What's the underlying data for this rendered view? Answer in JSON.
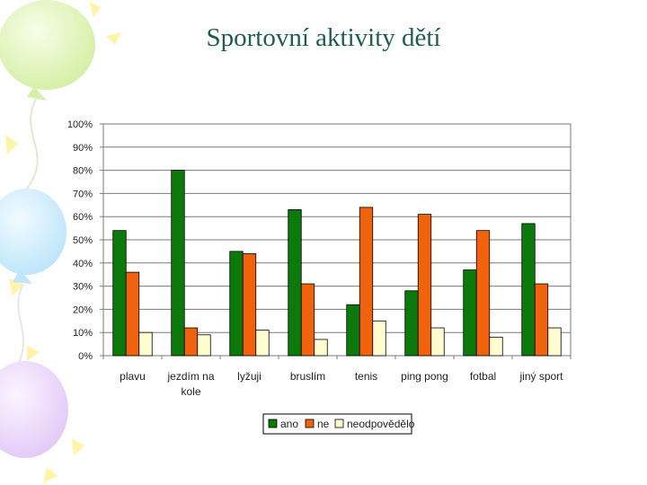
{
  "slide": {
    "title": "Sportovní aktivity dětí"
  },
  "colors": {
    "ano": "#0b7a0b",
    "ne": "#f0620c",
    "neodpovedelo": "#fffccf",
    "grid": "#7a7a7a",
    "title": "#1f5e4c"
  },
  "chart_data": {
    "type": "bar",
    "title": "",
    "xlabel": "",
    "ylabel": "",
    "ylim": [
      0,
      100
    ],
    "yticks": [
      "0%",
      "10%",
      "20%",
      "30%",
      "40%",
      "50%",
      "60%",
      "70%",
      "80%",
      "90%",
      "100%"
    ],
    "categories": [
      [
        "plavu"
      ],
      [
        "jezdím na",
        "kole"
      ],
      [
        "lyžuji"
      ],
      [
        "bruslím"
      ],
      [
        "tenis"
      ],
      [
        "ping pong"
      ],
      [
        "fotbal"
      ],
      [
        "jiný sport"
      ]
    ],
    "series": [
      {
        "name": "ano",
        "values": [
          54,
          80,
          45,
          63,
          22,
          28,
          37,
          57
        ]
      },
      {
        "name": "ne",
        "values": [
          36,
          12,
          44,
          31,
          64,
          61,
          54,
          31
        ]
      },
      {
        "name": "neodpovědělo",
        "values": [
          10,
          9,
          11,
          7,
          15,
          12,
          8,
          12
        ]
      }
    ],
    "legend_position": "bottom",
    "grid": true
  }
}
